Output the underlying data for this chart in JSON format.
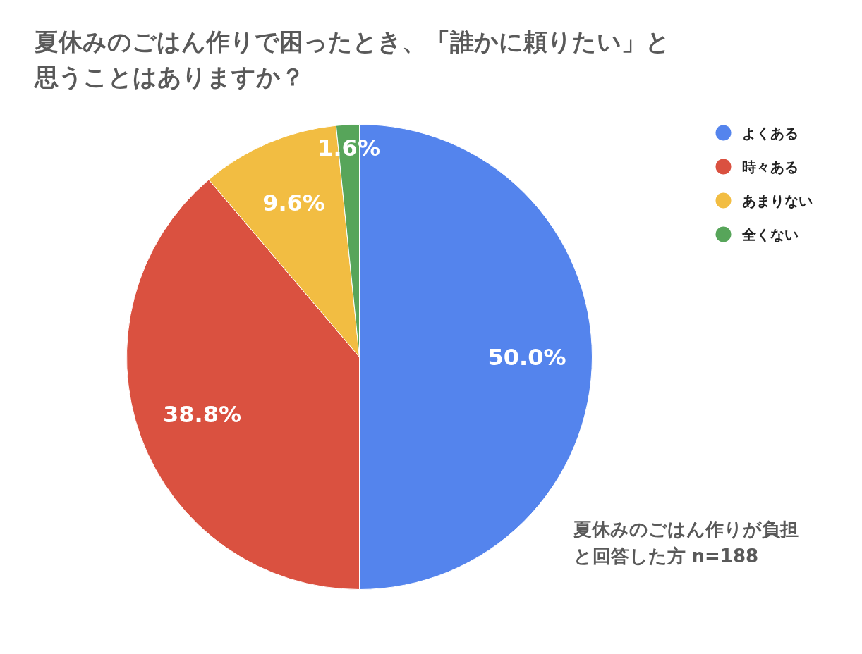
{
  "chart_data": {
    "type": "pie",
    "title": "夏休みのごはん作りで困ったとき、「誰かに頼りたい」と思うことはありますか？",
    "categories": [
      "よくある",
      "時々ある",
      "あまりない",
      "全くない"
    ],
    "values": [
      50.0,
      38.8,
      9.6,
      1.6
    ],
    "colors": [
      "#5484ed",
      "#da5140",
      "#f2bd42",
      "#57a55a"
    ],
    "value_labels": [
      "50.0%",
      "38.8%",
      "9.6%",
      "1.6%"
    ],
    "legend": "top right",
    "annotations": [
      "夏休みのごはん作りが負担と回答した方 n=188"
    ]
  }
}
